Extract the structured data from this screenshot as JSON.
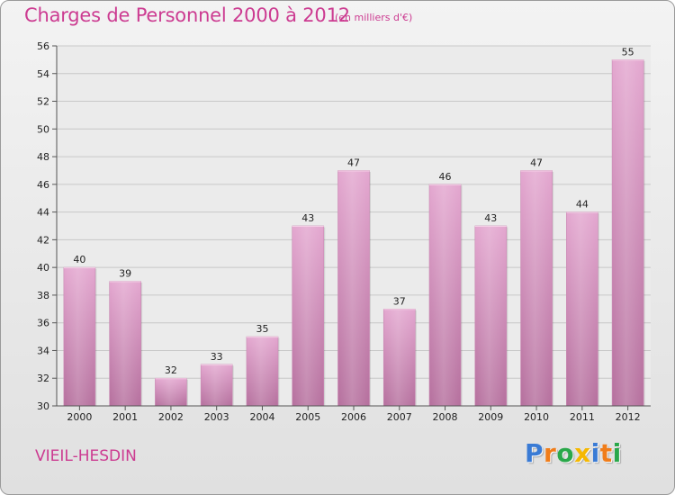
{
  "header": {
    "title": "Charges de Personnel 2000 à 2012",
    "subtitle": "(en milliers d'€)"
  },
  "footer": {
    "town": "VIEIL-HESDIN",
    "logo_letters": [
      {
        "char": "P",
        "color": "#3a7bd5"
      },
      {
        "char": "r",
        "color": "#f07d1a"
      },
      {
        "char": "o",
        "color": "#2aa84a"
      },
      {
        "char": "x",
        "color": "#f5b800"
      },
      {
        "char": "i",
        "color": "#3a7bd5"
      },
      {
        "char": "t",
        "color": "#f07d1a"
      },
      {
        "char": "i",
        "color": "#2aa84a"
      }
    ]
  },
  "chart_data": {
    "type": "bar",
    "categories": [
      "2000",
      "2001",
      "2002",
      "2003",
      "2004",
      "2005",
      "2006",
      "2007",
      "2008",
      "2009",
      "2010",
      "2011",
      "2012"
    ],
    "values": [
      40,
      39,
      32,
      33,
      35,
      43,
      47,
      37,
      46,
      43,
      47,
      44,
      55
    ],
    "title": "Charges de Personnel 2000 à 2012",
    "subtitle": "(en milliers d'€)",
    "ylim": [
      30,
      56
    ],
    "yticks": [
      30,
      32,
      34,
      36,
      38,
      40,
      42,
      44,
      46,
      48,
      50,
      52,
      54,
      56
    ],
    "grid": true,
    "bar_color": "#d88fbe"
  }
}
